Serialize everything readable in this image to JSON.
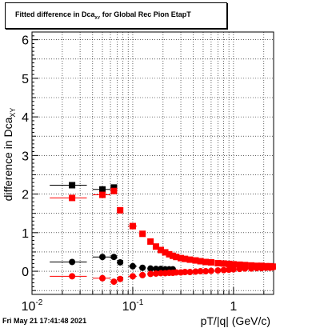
{
  "title": "Fitted difference in Dca",
  "title_sub": "XY",
  "title_suffix": " for Global Rec Pion EtapT",
  "footer": "Fri May 21 17:41:48 2021",
  "colors": {
    "black_series": "#000000",
    "red_series": "#ff0000"
  },
  "chart_data": {
    "type": "scatter",
    "xscale": "log",
    "xlim": [
      0.01,
      2.5
    ],
    "ylim": [
      -0.6,
      6.2
    ],
    "xlabel": "pT/|q| (GeV/c)",
    "ylabel": "difference in Dca",
    "ylabel_sub": "XY",
    "grid": true,
    "y_ticks": [
      "0",
      "1",
      "2",
      "3",
      "4",
      "5",
      "6"
    ],
    "x_tick_labels": [
      {
        "base": "10",
        "exp": "-2",
        "x": 0.01
      },
      {
        "base": "10",
        "exp": "-1",
        "x": 0.1
      },
      {
        "base": "1",
        "exp": "",
        "x": 1
      }
    ],
    "series": [
      {
        "marker": "square",
        "color": "#000000",
        "points": [
          [
            0.025,
            2.23,
            0.015,
            0.035
          ],
          [
            0.05,
            2.12,
            0.04,
            0.06
          ],
          [
            0.065,
            2.17,
            0.06,
            0.07
          ]
        ]
      },
      {
        "marker": "square",
        "color": "#ff0000",
        "points": [
          [
            0.025,
            1.9,
            0.015,
            0.035
          ],
          [
            0.05,
            1.98,
            0.04,
            0.06
          ],
          [
            0.065,
            2.08,
            0.06,
            0.07
          ],
          [
            0.075,
            1.58,
            0.07,
            0.08
          ],
          [
            0.1,
            1.17,
            0.09,
            0.11
          ],
          [
            0.125,
            0.97,
            0.115,
            0.135
          ],
          [
            0.15,
            0.77,
            null,
            null
          ],
          [
            0.17,
            0.64,
            null,
            null
          ],
          [
            0.19,
            0.55,
            null,
            null
          ],
          [
            0.21,
            0.49,
            null,
            null
          ],
          [
            0.23,
            0.44,
            null,
            null
          ],
          [
            0.25,
            0.4,
            null,
            null
          ],
          [
            0.27,
            0.37,
            null,
            null
          ],
          [
            0.3,
            0.34,
            null,
            null
          ],
          [
            0.33,
            0.32,
            null,
            null
          ],
          [
            0.37,
            0.3,
            null,
            null
          ],
          [
            0.42,
            0.28,
            null,
            null
          ],
          [
            0.47,
            0.26,
            null,
            null
          ],
          [
            0.53,
            0.24,
            null,
            null
          ],
          [
            0.6,
            0.23,
            null,
            null
          ],
          [
            0.7,
            0.21,
            null,
            null
          ],
          [
            0.8,
            0.2,
            null,
            null
          ],
          [
            0.9,
            0.19,
            null,
            null
          ],
          [
            1.0,
            0.18,
            null,
            null
          ],
          [
            1.15,
            0.17,
            null,
            null
          ],
          [
            1.3,
            0.16,
            null,
            null
          ],
          [
            1.5,
            0.15,
            null,
            null
          ],
          [
            1.7,
            0.14,
            null,
            null
          ],
          [
            1.9,
            0.14,
            null,
            null
          ],
          [
            2.1,
            0.13,
            null,
            null
          ],
          [
            2.3,
            0.13,
            null,
            null
          ],
          [
            2.45,
            0.12,
            null,
            null
          ]
        ]
      },
      {
        "marker": "circle",
        "color": "#000000",
        "points": [
          [
            0.025,
            0.24,
            0.015,
            0.035
          ],
          [
            0.05,
            0.37,
            0.04,
            0.06
          ],
          [
            0.065,
            0.37,
            0.06,
            0.07
          ],
          [
            0.075,
            0.23,
            0.07,
            0.08
          ],
          [
            0.1,
            0.13,
            0.09,
            0.11
          ],
          [
            0.125,
            0.09,
            0.115,
            0.135
          ],
          [
            0.15,
            0.07,
            null,
            null
          ],
          [
            0.17,
            0.06,
            null,
            null
          ],
          [
            0.19,
            0.06,
            null,
            null
          ],
          [
            0.21,
            0.05,
            null,
            null
          ],
          [
            0.23,
            0.05,
            null,
            null
          ],
          [
            0.25,
            0.05,
            null,
            null
          ]
        ]
      },
      {
        "marker": "circle",
        "color": "#ff0000",
        "points": [
          [
            0.025,
            -0.13,
            0.015,
            0.035
          ],
          [
            0.05,
            -0.18,
            0.04,
            0.06
          ],
          [
            0.065,
            -0.27,
            0.06,
            0.07
          ],
          [
            0.075,
            -0.2,
            0.07,
            0.08
          ],
          [
            0.1,
            -0.13,
            0.09,
            0.11
          ],
          [
            0.125,
            -0.1,
            0.115,
            0.135
          ],
          [
            0.15,
            -0.07,
            null,
            null
          ],
          [
            0.17,
            -0.06,
            null,
            null
          ],
          [
            0.19,
            -0.05,
            null,
            null
          ],
          [
            0.21,
            -0.05,
            null,
            null
          ],
          [
            0.23,
            -0.04,
            null,
            null
          ],
          [
            0.25,
            -0.04,
            null,
            null
          ],
          [
            0.27,
            -0.03,
            null,
            null
          ],
          [
            0.3,
            -0.03,
            null,
            null
          ],
          [
            0.33,
            -0.02,
            null,
            null
          ],
          [
            0.37,
            -0.02,
            null,
            null
          ],
          [
            0.42,
            -0.01,
            null,
            null
          ],
          [
            0.47,
            0.0,
            null,
            null
          ],
          [
            0.53,
            0.0,
            null,
            null
          ],
          [
            0.6,
            0.01,
            null,
            null
          ],
          [
            0.7,
            0.02,
            null,
            null
          ],
          [
            0.8,
            0.03,
            null,
            null
          ],
          [
            0.9,
            0.04,
            null,
            null
          ],
          [
            1.0,
            0.05,
            null,
            null
          ],
          [
            1.15,
            0.06,
            null,
            null
          ],
          [
            1.3,
            0.07,
            null,
            null
          ],
          [
            1.5,
            0.07,
            null,
            null
          ],
          [
            1.7,
            0.08,
            null,
            null
          ],
          [
            1.9,
            0.08,
            null,
            null
          ],
          [
            2.1,
            0.09,
            null,
            null
          ],
          [
            2.3,
            0.09,
            null,
            null
          ],
          [
            2.45,
            0.1,
            null,
            null
          ]
        ]
      }
    ]
  }
}
